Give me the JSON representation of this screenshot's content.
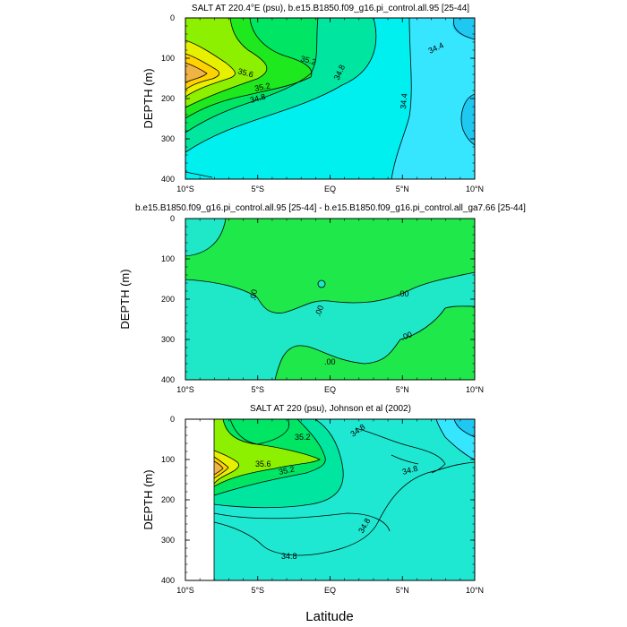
{
  "figure": {
    "xlabel": "Latitude",
    "colors": {
      "c34_0": "#1ec8f0",
      "c34_4": "#36e6ff",
      "c34_8": "#00f0f0",
      "c34_8b": "#1ee8d2",
      "c35_0": "#00e6a0",
      "c35_2": "#00e664",
      "c35_2b": "#1ee81e",
      "c35_4": "#8cf000",
      "c35_6": "#e6f000",
      "c35_8": "#ffd200",
      "c36_0": "#f0b446",
      "diff_pos": "#1ee84a",
      "diff_neg": "#1ee8c8"
    }
  },
  "chart_data": [
    {
      "type": "contour",
      "title": "SALT AT 220.4°E (psu), b.e15.B1850.f09_g16.pi_control.all.95 [25-44]",
      "xlabel": "",
      "ylabel": "DEPTH (m)",
      "x_tick_labels": [
        "10°S",
        "5°S",
        "EQ",
        "5°N",
        "10°N"
      ],
      "x_range": [
        -10,
        10
      ],
      "y_tick_labels": [
        "0",
        "100",
        "200",
        "300",
        "400"
      ],
      "y_range": [
        0,
        400
      ],
      "y_reversed": true,
      "contour_labels": [
        "35.2",
        "34.8",
        "34.4",
        "35.6",
        "35.2",
        "34.8",
        "34.4"
      ]
    },
    {
      "type": "contour",
      "title": "b.e15.B1850.f09_g16.pi_control.all.95 [25-44] - b.e15.B1850.f09_g16.pi_control.all_ga7.66 [25-44]",
      "xlabel": "",
      "ylabel": "DEPTH (m)",
      "x_tick_labels": [
        "10°S",
        "5°S",
        "EQ",
        "5°N",
        "10°N"
      ],
      "x_range": [
        -10,
        10
      ],
      "y_tick_labels": [
        "0",
        "100",
        "200",
        "300",
        "400"
      ],
      "y_range": [
        0,
        400
      ],
      "y_reversed": true,
      "contour_labels": [
        ".00",
        ".00",
        ".00",
        ".00",
        ".00"
      ]
    },
    {
      "type": "contour",
      "title": "SALT AT 220 (psu), Johnson et al (2002)",
      "xlabel": "",
      "ylabel": "DEPTH (m)",
      "x_tick_labels": [
        "10°S",
        "5°S",
        "EQ",
        "5°N",
        "10°N"
      ],
      "x_range": [
        -10,
        10
      ],
      "y_tick_labels": [
        "0",
        "100",
        "200",
        "300",
        "400"
      ],
      "y_range": [
        0,
        400
      ],
      "y_reversed": true,
      "contour_labels": [
        "35.2",
        "34.8",
        "35.6",
        "35.2",
        "34.8",
        "34.8",
        "34.8"
      ]
    }
  ]
}
